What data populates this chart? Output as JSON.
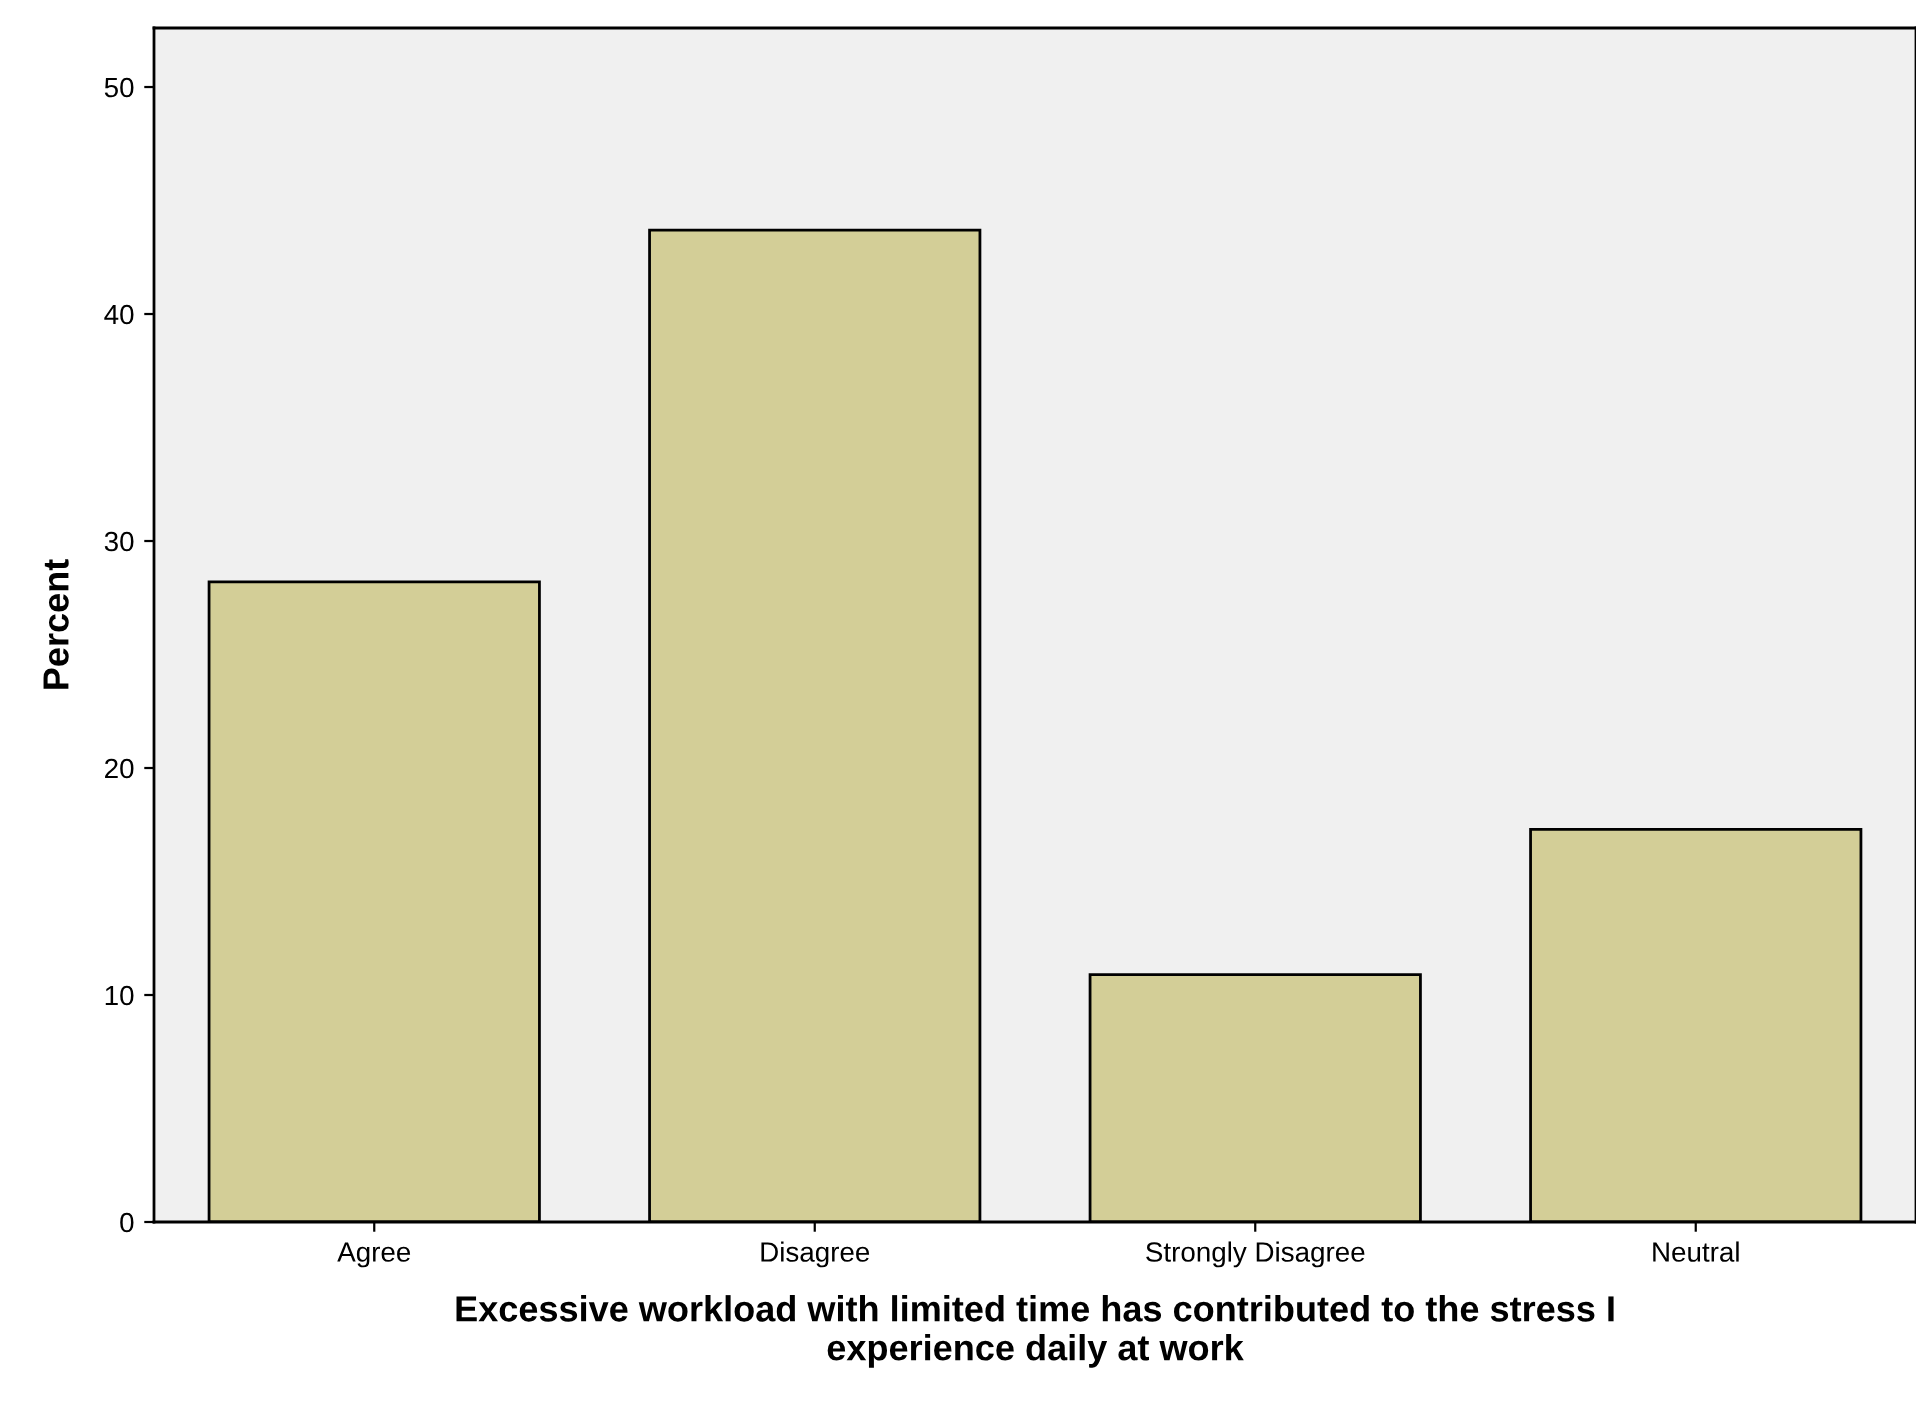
{
  "chart_data": {
    "type": "bar",
    "xlabel": "Excessive workload with limited time has contributed to the stress I\nexperience daily at work",
    "ylabel": "Percent",
    "categories": [
      "Agree",
      "Disagree",
      "Strongly Disagree",
      "Neutral"
    ],
    "values": [
      28.2,
      43.7,
      10.9,
      17.3
    ],
    "color": "#d3ce97",
    "ylim": [
      0,
      52.6
    ],
    "yticks": [
      0,
      10,
      20,
      30,
      40,
      50
    ],
    "grid": false
  }
}
